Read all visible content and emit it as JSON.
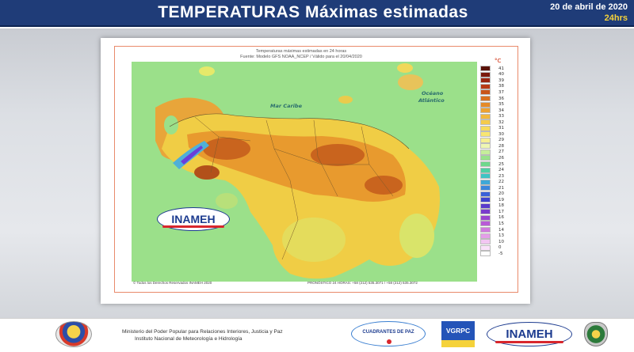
{
  "header": {
    "title": "TEMPERATURAS Máximas estimadas",
    "date": "20 de abril de 2020",
    "hours": "24hrs"
  },
  "map": {
    "title_line1": "Temperaturas máximas estimadas en 24 horas",
    "title_line2": "Fuente: Modelo GFS NOAA_NCEP / Válido para el 20/04/2020",
    "label_sea": "Mar Caribe",
    "label_ocean_1": "Océano",
    "label_ocean_2": "Atlántico",
    "logo_text": "INAMEH",
    "copyright": "© Todos los Derechos Reservados INAMEH 2020",
    "contact": "PRONÓSTICO 24 HORAS: +58 (212) 535.3071 / +58 (212) 535.3072",
    "colors": {
      "sea": "#9be08a",
      "land_base": "#f0cd45",
      "land_warm": "#e89a2e",
      "land_hot": "#c9641e",
      "land_cool": "#d9e46a",
      "cold_core": "#6a3fd9",
      "border": "#7a5a2a"
    }
  },
  "legend": {
    "unit": "°C",
    "entries": [
      {
        "label": "41",
        "color": "#5a1208"
      },
      {
        "label": "40",
        "color": "#7a1a0c"
      },
      {
        "label": "39",
        "color": "#9a2610"
      },
      {
        "label": "38",
        "color": "#b83a14"
      },
      {
        "label": "37",
        "color": "#c9551a"
      },
      {
        "label": "36",
        "color": "#d9701f"
      },
      {
        "label": "35",
        "color": "#e58a28"
      },
      {
        "label": "34",
        "color": "#eda233"
      },
      {
        "label": "33",
        "color": "#f2b83e"
      },
      {
        "label": "32",
        "color": "#f5cb4a"
      },
      {
        "label": "31",
        "color": "#f7db5c"
      },
      {
        "label": "30",
        "color": "#f8e672"
      },
      {
        "label": "29",
        "color": "#f7ef92"
      },
      {
        "label": "28",
        "color": "#eef6b3"
      },
      {
        "label": "27",
        "color": "#c6ee9a"
      },
      {
        "label": "26",
        "color": "#98e28a"
      },
      {
        "label": "25",
        "color": "#6fd88c"
      },
      {
        "label": "24",
        "color": "#4fd0a4"
      },
      {
        "label": "23",
        "color": "#3fc4c4"
      },
      {
        "label": "22",
        "color": "#3ea8d8"
      },
      {
        "label": "21",
        "color": "#3c86dc"
      },
      {
        "label": "20",
        "color": "#3a62d8"
      },
      {
        "label": "19",
        "color": "#3f44cf"
      },
      {
        "label": "18",
        "color": "#5a3ccc"
      },
      {
        "label": "17",
        "color": "#7a3ccc"
      },
      {
        "label": "16",
        "color": "#9a46d0"
      },
      {
        "label": "15",
        "color": "#b85ad6"
      },
      {
        "label": "14",
        "color": "#d07ade"
      },
      {
        "label": "13",
        "color": "#e49ee8"
      },
      {
        "label": "10",
        "color": "#f2c6f2"
      },
      {
        "label": "0",
        "color": "#fae2fa"
      },
      {
        "label": "-5",
        "color": "#ffffff"
      }
    ]
  },
  "footer": {
    "ministry_line1": "Ministerio del Poder Popular para Relaciones Interiores, Justicia y Paz",
    "ministry_line2": "Instituto Nacional de Meteorología e Hidrología",
    "logo_cuadrantes": "CUADRANTES DE PAZ",
    "logo_vgrpc": "VGRPC",
    "logo_inameh": "INAMEH"
  }
}
